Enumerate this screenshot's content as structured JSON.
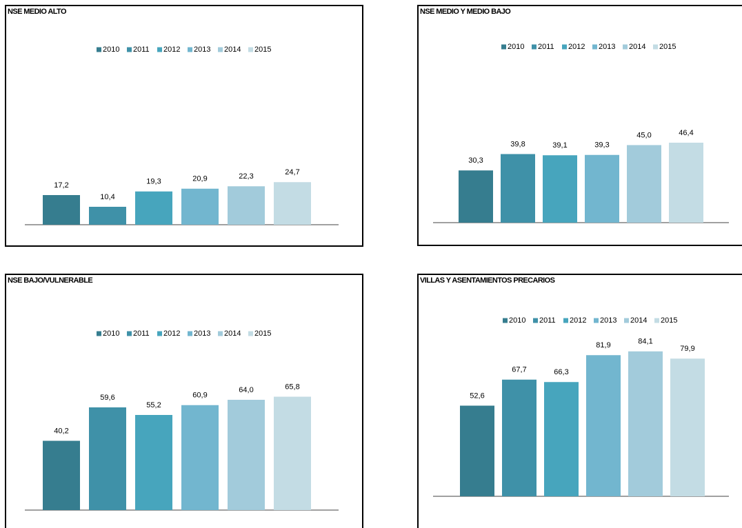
{
  "chart_data": [
    {
      "type": "bar",
      "title": "NSE MEDIO ALTO",
      "series": [
        {
          "name": "2010",
          "color": "#367d8f",
          "values": [
            17.2
          ],
          "value_labels": [
            "17,2"
          ]
        },
        {
          "name": "2011",
          "color": "#3f91a8",
          "values": [
            10.4
          ],
          "value_labels": [
            "10,4"
          ]
        },
        {
          "name": "2012",
          "color": "#47a5bd",
          "values": [
            19.3
          ],
          "value_labels": [
            "19,3"
          ]
        },
        {
          "name": "2013",
          "color": "#72b6cf",
          "values": [
            20.9
          ],
          "value_labels": [
            "20,9"
          ]
        },
        {
          "name": "2014",
          "color": "#a2cbdb",
          "values": [
            22.3
          ],
          "value_labels": [
            "22,3"
          ]
        },
        {
          "name": "2015",
          "color": "#c3dce4",
          "values": [
            24.7
          ],
          "value_labels": [
            "24,7"
          ]
        }
      ]
    },
    {
      "type": "bar",
      "title": "NSE MEDIO Y MEDIO BAJO",
      "series": [
        {
          "name": "2010",
          "color": "#367d8f",
          "values": [
            30.3
          ],
          "value_labels": [
            "30,3"
          ]
        },
        {
          "name": "2011",
          "color": "#3f91a8",
          "values": [
            39.8
          ],
          "value_labels": [
            "39,8"
          ]
        },
        {
          "name": "2012",
          "color": "#47a5bd",
          "values": [
            39.1
          ],
          "value_labels": [
            "39,1"
          ]
        },
        {
          "name": "2013",
          "color": "#72b6cf",
          "values": [
            39.3
          ],
          "value_labels": [
            "39,3"
          ]
        },
        {
          "name": "2014",
          "color": "#a2cbdb",
          "values": [
            45.0
          ],
          "value_labels": [
            "45,0"
          ]
        },
        {
          "name": "2015",
          "color": "#c3dce4",
          "values": [
            46.4
          ],
          "value_labels": [
            "46,4"
          ]
        }
      ]
    },
    {
      "type": "bar",
      "title": "NSE BAJO/VULNERABLE",
      "series": [
        {
          "name": "2010",
          "color": "#367d8f",
          "values": [
            40.2
          ],
          "value_labels": [
            "40,2"
          ]
        },
        {
          "name": "2011",
          "color": "#3f91a8",
          "values": [
            59.6
          ],
          "value_labels": [
            "59,6"
          ]
        },
        {
          "name": "2012",
          "color": "#47a5bd",
          "values": [
            55.2
          ],
          "value_labels": [
            "55,2"
          ]
        },
        {
          "name": "2013",
          "color": "#72b6cf",
          "values": [
            60.9
          ],
          "value_labels": [
            "60,9"
          ]
        },
        {
          "name": "2014",
          "color": "#a2cbdb",
          "values": [
            64.0
          ],
          "value_labels": [
            "64,0"
          ]
        },
        {
          "name": "2015",
          "color": "#c3dce4",
          "values": [
            65.8
          ],
          "value_labels": [
            "65,8"
          ]
        }
      ]
    },
    {
      "type": "bar",
      "title": "VILLAS Y ASENTAMIENTOS PRECARIOS",
      "series": [
        {
          "name": "2010",
          "color": "#367d8f",
          "values": [
            52.6
          ],
          "value_labels": [
            "52,6"
          ]
        },
        {
          "name": "2011",
          "color": "#3f91a8",
          "values": [
            67.7
          ],
          "value_labels": [
            "67,7"
          ]
        },
        {
          "name": "2012",
          "color": "#47a5bd",
          "values": [
            66.3
          ],
          "value_labels": [
            "66,3"
          ]
        },
        {
          "name": "2013",
          "color": "#72b6cf",
          "values": [
            81.9
          ],
          "value_labels": [
            "81,9"
          ]
        },
        {
          "name": "2014",
          "color": "#a2cbdb",
          "values": [
            84.1
          ],
          "value_labels": [
            "84,1"
          ]
        },
        {
          "name": "2015",
          "color": "#c3dce4",
          "values": [
            79.9
          ],
          "value_labels": [
            "79,9"
          ]
        }
      ]
    }
  ]
}
